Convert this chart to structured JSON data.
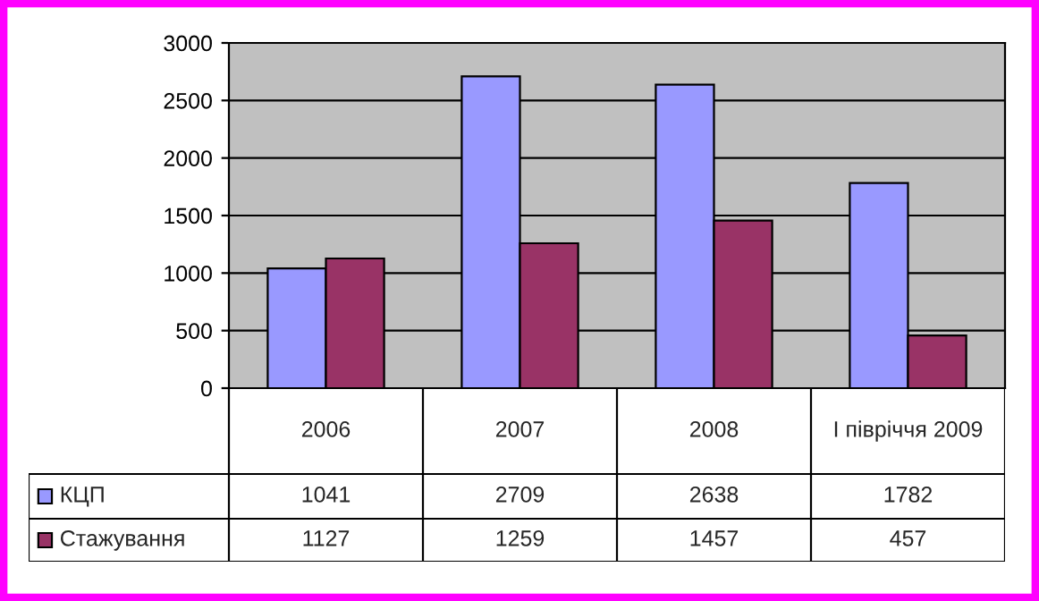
{
  "chart_data": {
    "type": "bar",
    "categories": [
      "2006",
      "2007",
      "2008",
      "І півріччя 2009"
    ],
    "series": [
      {
        "name": "КЦП",
        "color": "#9999ff",
        "values": [
          1041,
          2709,
          2638,
          1782
        ]
      },
      {
        "name": "Стажування",
        "color": "#993366",
        "values": [
          1127,
          1259,
          1457,
          457
        ]
      }
    ],
    "ylim": [
      0,
      3000
    ],
    "yticks": [
      0,
      500,
      1000,
      1500,
      2000,
      2500,
      3000
    ],
    "grid": "y",
    "data_labels": true,
    "legend": "bottom left"
  }
}
